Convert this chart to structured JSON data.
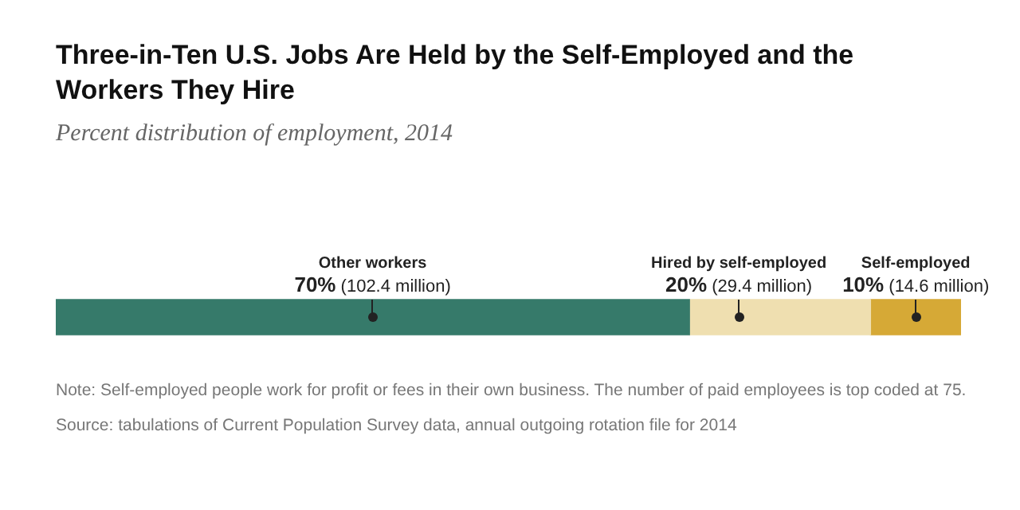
{
  "chart_data": {
    "type": "bar",
    "title": "Three-in-Ten U.S. Jobs Are Held by the Self-Employed and the Workers They Hire",
    "subtitle": "Percent distribution of employment, 2014",
    "orientation": "horizontal",
    "stacked": true,
    "categories": [
      null
    ],
    "xlim": [
      0,
      100
    ],
    "tick_labels": false,
    "legend": false,
    "grid": false,
    "series": [
      {
        "name": "Other workers",
        "color": "#367a6a",
        "values": [
          70
        ],
        "value_labels": [
          "70% (102.4 million)"
        ]
      },
      {
        "name": "Hired by self-employed",
        "color": "#efdfb0",
        "values": [
          20
        ],
        "value_labels": [
          "20% (29.4 million)"
        ]
      },
      {
        "name": "Self-employed",
        "color": "#d6a936",
        "values": [
          10
        ],
        "value_labels": [
          "10% (14.6 million)"
        ]
      }
    ],
    "annotations": [
      "Note: Self-employed people work for profit or fees in their own business. The number of paid employees is top coded at 75.",
      "Source: tabulations of Current Population Survey data, annual outgoing rotation file for 2014"
    ]
  }
}
